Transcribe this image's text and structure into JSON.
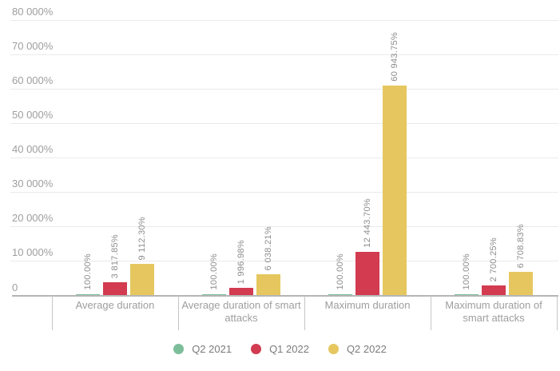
{
  "chart_data": {
    "type": "bar",
    "title": "",
    "xlabel": "",
    "ylabel": "",
    "ylim": [
      0,
      80000
    ],
    "y_tick_step": 10000,
    "y_unit": "%",
    "grid": true,
    "legend_position": "bottom",
    "y_tick_labels": [
      "80 000%",
      "70 000%",
      "60 000%",
      "50 000%",
      "40 000%",
      "30 000%",
      "20 000%",
      "10 000%",
      "0"
    ],
    "categories": [
      "Average duration",
      "Average duration of smart attacks",
      "Maximum duration",
      "Maximum duration of smart attacks"
    ],
    "series": [
      {
        "name": "Q2 2021",
        "color": "#7cbe9a",
        "values": [
          100.0,
          100.0,
          100.0,
          100.0
        ],
        "labels": [
          "100.00%",
          "100.00%",
          "100.00%",
          "100.00%"
        ]
      },
      {
        "name": "Q1 2022",
        "color": "#d23b50",
        "values": [
          3817.85,
          1996.98,
          12443.7,
          2700.25
        ],
        "labels": [
          "3 817.85%",
          "1 996.98%",
          "12 443.70%",
          "2 700.25%"
        ]
      },
      {
        "name": "Q2 2022",
        "color": "#e6c75f",
        "values": [
          9112.3,
          6038.21,
          60943.75,
          6708.83
        ],
        "labels": [
          "9 112.30%",
          "6 038.21%",
          "60 943.75%",
          "6 708.83%"
        ]
      }
    ]
  }
}
